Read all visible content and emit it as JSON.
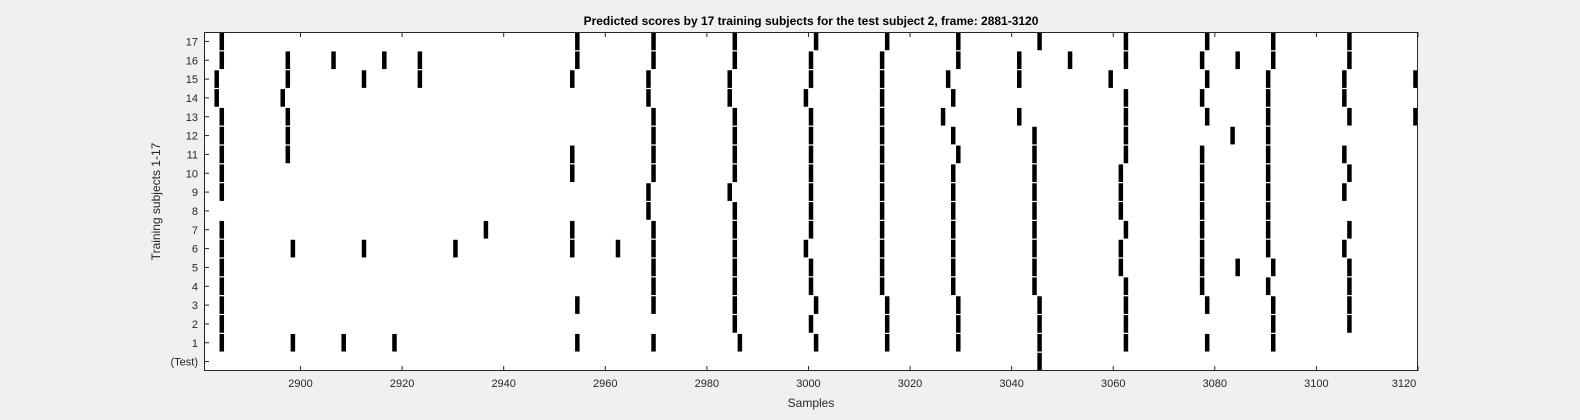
{
  "chart_data": {
    "type": "raster",
    "title": "Predicted scores by 17 training subjects for the test subject 2, frame: 2881-3120",
    "xlabel": "Samples",
    "ylabel": "Training subjects 1-17",
    "xlim": [
      2881,
      3120
    ],
    "xticks": [
      2900,
      2920,
      2940,
      2960,
      2980,
      3000,
      3020,
      3040,
      3060,
      3080,
      3100,
      3120
    ],
    "rows": [
      "(Test)",
      "1",
      "2",
      "3",
      "4",
      "5",
      "6",
      "7",
      "8",
      "9",
      "10",
      "11",
      "12",
      "13",
      "14",
      "15",
      "16",
      "17"
    ],
    "events": {
      "(Test)": [
        3045.5
      ],
      "1": [
        2884.5,
        2898.5,
        2908.5,
        2918.5,
        2954.5,
        2969.5,
        2986.5,
        3001.5,
        3015.5,
        3029.5,
        3045.5,
        3062.5,
        3078.5,
        3091.5
      ],
      "2": [
        2884.5,
        2985.5,
        3000.5,
        3015.5,
        3029.5,
        3045.5,
        3062.5,
        3091.5,
        3106.5
      ],
      "3": [
        2884.5,
        2954.5,
        2969.5,
        2985.5,
        3001.5,
        3015.5,
        3029.5,
        3045.5,
        3062.5,
        3078.5,
        3091.5,
        3106.5
      ],
      "4": [
        2884.5,
        2969.5,
        2985.5,
        3000.5,
        3014.5,
        3028.5,
        3044.5,
        3062.5,
        3077.5,
        3090.5,
        3106.5
      ],
      "5": [
        2884.5,
        2969.5,
        2985.5,
        3000.5,
        3014.5,
        3028.5,
        3044.5,
        3061.5,
        3077.5,
        3084.5,
        3091.5,
        3106.5
      ],
      "6": [
        2884.5,
        2898.5,
        2912.5,
        2930.5,
        2953.5,
        2962.5,
        2969.5,
        2985.5,
        2999.5,
        3014.5,
        3028.5,
        3044.5,
        3061.5,
        3077.5,
        3090.5,
        3105.5
      ],
      "7": [
        2884.5,
        2936.5,
        2953.5,
        2969.5,
        2985.5,
        3000.5,
        3014.5,
        3028.5,
        3044.5,
        3062.5,
        3077.5,
        3090.5,
        3106.5
      ],
      "8": [
        2968.5,
        2985.5,
        3000.5,
        3014.5,
        3028.5,
        3044.5,
        3061.5,
        3077.5,
        3090.5
      ],
      "9": [
        2884.5,
        2968.5,
        2984.5,
        3000.5,
        3014.5,
        3028.5,
        3044.5,
        3061.5,
        3077.5,
        3090.5,
        3105.5
      ],
      "10": [
        2884.5,
        2953.5,
        2969.5,
        2985.5,
        3000.5,
        3014.5,
        3028.5,
        3044.5,
        3061.5,
        3077.5,
        3090.5,
        3106.5
      ],
      "11": [
        2884.5,
        2897.5,
        2953.5,
        2969.5,
        2985.5,
        3000.5,
        3014.5,
        3029.5,
        3044.5,
        3062.5,
        3077.5,
        3090.5,
        3105.5
      ],
      "12": [
        2884.5,
        2897.5,
        2969.5,
        2985.5,
        3000.5,
        3014.5,
        3028.5,
        3044.5,
        3062.5,
        3083.5,
        3090.5
      ],
      "13": [
        2884.5,
        2897.5,
        2969.5,
        2985.5,
        3000.5,
        3014.5,
        3026.5,
        3041.5,
        3062.5,
        3078.5,
        3090.5,
        3106.5,
        3119.5
      ],
      "14": [
        2883.5,
        2896.5,
        2968.5,
        2984.5,
        2999.5,
        3014.5,
        3028.5,
        3062.5,
        3077.5,
        3090.5,
        3105.5
      ],
      "15": [
        2883.5,
        2897.5,
        2912.5,
        2923.5,
        2953.5,
        2968.5,
        2984.5,
        3000.5,
        3014.5,
        3027.5,
        3041.5,
        3059.5,
        3078.5,
        3090.5,
        3105.5,
        3119.5
      ],
      "16": [
        2884.5,
        2897.5,
        2906.5,
        2916.5,
        2923.5,
        2954.5,
        2969.5,
        2985.5,
        3000.5,
        3014.5,
        3029.5,
        3041.5,
        3051.5,
        3062.5,
        3077.5,
        3084.5,
        3091.5,
        3106.5
      ],
      "17": [
        2884.5,
        2954.5,
        2969.5,
        2985.5,
        3001.5,
        3015.5,
        3029.5,
        3045.5,
        3062.5,
        3078.5,
        3091.5,
        3106.5
      ]
    },
    "colors": {
      "background": "#f0f0f0",
      "plot_area": "#ffffff",
      "mark": "#000000",
      "axis": "#262626"
    }
  }
}
